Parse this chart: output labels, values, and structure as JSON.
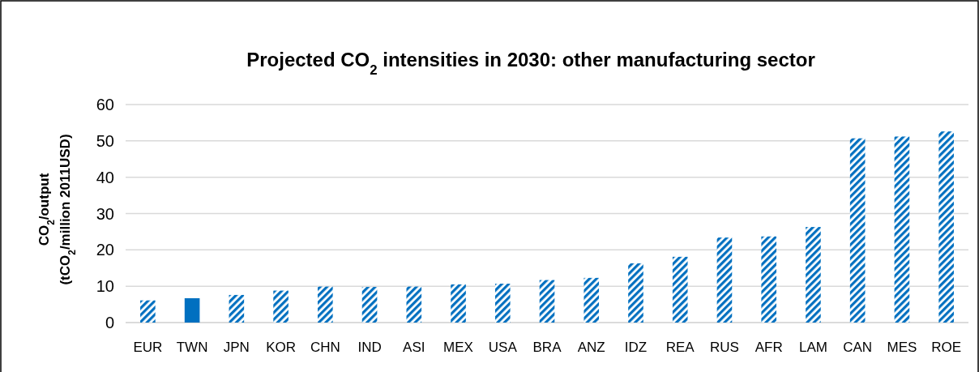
{
  "chart_data": {
    "type": "bar",
    "title": "Projected CO$_{2}$ intensities in 2030: other manufacturing sector",
    "ylabel": "CO$_{2}$/output\n(tCO$_{2}$/million 2011USD)",
    "categories": [
      "EUR",
      "TWN",
      "JPN",
      "KOR",
      "CHN",
      "IND",
      "ASI",
      "MEX",
      "USA",
      "BRA",
      "ANZ",
      "IDZ",
      "REA",
      "RUS",
      "AFR",
      "LAM",
      "CAN",
      "MES",
      "ROE"
    ],
    "series": [
      {
        "color": "#0070c0",
        "values": [
          6.1,
          null,
          7.6,
          8.8,
          9.9,
          9.8,
          9.9,
          10.5,
          10.7,
          11.7,
          12.3,
          16.3,
          18.1,
          23.4,
          23.7,
          26.3,
          50.7,
          51.2,
          52.6
        ]
      },
      {
        "color": "#0070c0",
        "values": [
          null,
          6.7,
          null,
          null,
          null,
          null,
          null,
          null,
          null,
          null,
          null,
          null,
          null,
          null,
          null,
          null,
          null,
          null,
          null
        ]
      }
    ],
    "ylim": [
      0,
      60
    ],
    "yticks": [
      0,
      10,
      20,
      30,
      40,
      50,
      60
    ],
    "grid": "y"
  }
}
